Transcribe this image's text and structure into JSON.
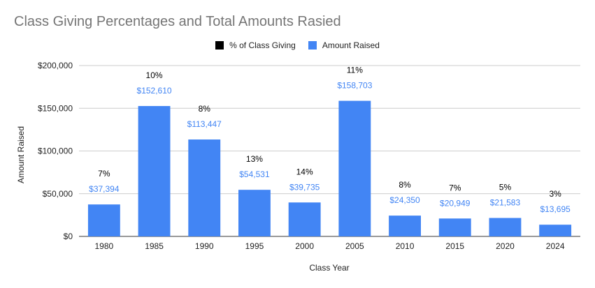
{
  "chart_data": {
    "type": "bar",
    "title": "Class Giving Percentages and Total Amounts Rasied",
    "xlabel": "Class Year",
    "ylabel": "Amount Raised",
    "categories": [
      "1980",
      "1985",
      "1990",
      "1995",
      "2000",
      "2005",
      "2010",
      "2015",
      "2020",
      "2024"
    ],
    "series": [
      {
        "name": "% of Class Giving",
        "color": "#000000",
        "values": [
          "7%",
          "10%",
          "8%",
          "13%",
          "14%",
          "11%",
          "8%",
          "7%",
          "5%",
          "3%"
        ]
      },
      {
        "name": "Amount Raised",
        "color": "#4285f4",
        "values": [
          37394,
          152610,
          113447,
          54531,
          39735,
          158703,
          24350,
          20949,
          21583,
          13695
        ],
        "labels": [
          "$37,394",
          "$152,610",
          "$113,447",
          "$54,531",
          "$39,735",
          "$158,703",
          "$24,350",
          "$20,949",
          "$21,583",
          "$13,695"
        ]
      }
    ],
    "ylim": [
      0,
      200000
    ],
    "yticks": [
      0,
      50000,
      100000,
      150000,
      200000
    ],
    "ytick_labels": [
      "$0",
      "$50,000",
      "$100,000",
      "$150,000",
      "$200,000"
    ],
    "grid": true,
    "legend_position": "top"
  }
}
